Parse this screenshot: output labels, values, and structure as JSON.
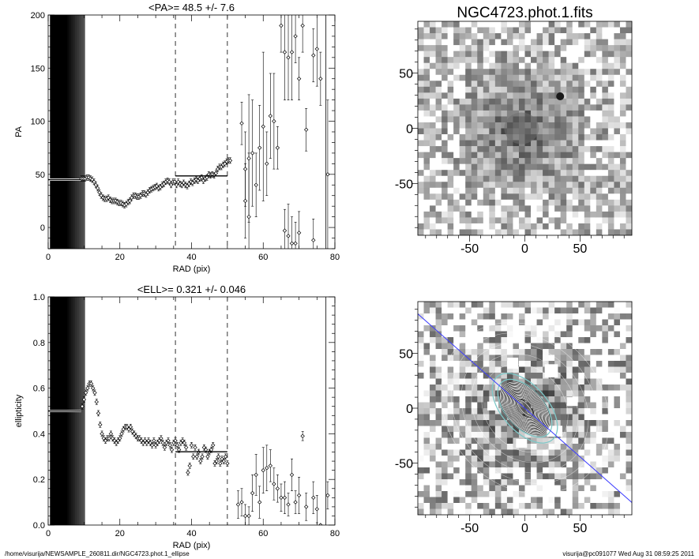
{
  "footer": {
    "path": "/home/visurija/NEWSAMPLE_260811.dir/NGC4723.phot.1_ellipse",
    "stamp": "visurija@pc091077  Wed Aug 31 08:59:25 2011"
  },
  "image_panels": {
    "title": "NGC4723.phot.1.fits",
    "xticks": [
      -50,
      0,
      50
    ],
    "yticks": [
      -50,
      0,
      50
    ],
    "range": [
      -97,
      97
    ],
    "top": {
      "blob_center": [
        -3,
        0
      ],
      "star_position": [
        32,
        29
      ],
      "colors": {
        "dark": "#1a1a1a",
        "light": "#ffffff"
      }
    },
    "bottom": {
      "pa_line_deg": 48.5,
      "ellipse_color": "#ffffff",
      "cyan_color": "#7ec8c8",
      "pa_line_color": "#3c3cff"
    }
  },
  "chart_data": [
    {
      "type": "scatter",
      "title": "<PA>=  48.5 +/-   7.6",
      "xlabel": "RAD (pix)",
      "ylabel": "PA",
      "xlim": [
        0,
        80
      ],
      "ylim": [
        -20,
        200
      ],
      "xticks": [
        0,
        20,
        40,
        60,
        80
      ],
      "yticks": [
        0,
        50,
        100,
        150,
        200
      ],
      "dashed_lines_x": [
        35.5,
        50
      ],
      "mean_line": {
        "x": [
          35.5,
          50
        ],
        "y": 48.5
      },
      "points": [
        [
          9.3,
          46
        ],
        [
          9.8,
          46
        ],
        [
          10.3,
          46
        ],
        [
          10.8,
          47
        ],
        [
          11.3,
          47
        ],
        [
          11.8,
          46
        ],
        [
          12.3,
          45
        ],
        [
          12.8,
          43
        ],
        [
          13.3,
          40
        ],
        [
          13.8,
          37
        ],
        [
          14.3,
          33
        ],
        [
          14.8,
          30
        ],
        [
          15.3,
          28
        ],
        [
          15.8,
          27
        ],
        [
          16.3,
          27
        ],
        [
          16.8,
          28
        ],
        [
          17.3,
          26
        ],
        [
          17.8,
          25
        ],
        [
          18.3,
          25
        ],
        [
          18.8,
          25
        ],
        [
          19.3,
          24
        ],
        [
          19.8,
          23
        ],
        [
          20.3,
          23
        ],
        [
          20.8,
          22
        ],
        [
          21.3,
          21
        ],
        [
          21.8,
          22
        ],
        [
          22.3,
          24
        ],
        [
          22.8,
          25
        ],
        [
          23.3,
          28
        ],
        [
          23.8,
          30
        ],
        [
          24.3,
          30
        ],
        [
          24.8,
          29
        ],
        [
          25.3,
          29
        ],
        [
          25.8,
          30
        ],
        [
          26.3,
          32
        ],
        [
          26.8,
          32
        ],
        [
          27.3,
          31
        ],
        [
          27.8,
          33
        ],
        [
          28.3,
          35
        ],
        [
          28.8,
          36
        ],
        [
          29.3,
          37
        ],
        [
          29.8,
          38
        ],
        [
          30.3,
          39
        ],
        [
          30.8,
          37
        ],
        [
          31.3,
          38
        ],
        [
          31.8,
          40
        ],
        [
          32.3,
          41
        ],
        [
          32.8,
          43
        ],
        [
          33.3,
          44
        ],
        [
          33.8,
          43
        ],
        [
          34.3,
          40
        ],
        [
          34.8,
          43
        ],
        [
          35.3,
          43
        ],
        [
          35.8,
          40
        ],
        [
          36.3,
          43
        ],
        [
          36.8,
          41
        ],
        [
          37.3,
          40
        ],
        [
          37.8,
          42
        ],
        [
          38.3,
          40
        ],
        [
          38.8,
          39
        ],
        [
          39.3,
          41
        ],
        [
          39.8,
          43
        ],
        [
          40.3,
          42
        ],
        [
          40.8,
          44
        ],
        [
          41.3,
          45
        ],
        [
          41.8,
          44
        ],
        [
          42.3,
          46
        ],
        [
          42.8,
          47
        ],
        [
          43.3,
          44
        ],
        [
          43.8,
          46
        ],
        [
          44.3,
          47
        ],
        [
          44.8,
          50
        ],
        [
          45.3,
          49
        ],
        [
          45.8,
          50
        ],
        [
          46.3,
          49
        ],
        [
          46.8,
          51
        ],
        [
          47.3,
          55
        ],
        [
          47.8,
          57
        ],
        [
          48.3,
          57
        ],
        [
          48.8,
          59
        ],
        [
          49.3,
          60
        ],
        [
          49.8,
          62
        ],
        [
          50.3,
          63
        ],
        [
          50.8,
          63
        ],
        [
          54,
          98
        ],
        [
          55,
          55
        ],
        [
          56,
          65
        ],
        [
          57,
          70
        ],
        [
          58,
          40
        ],
        [
          59,
          75
        ],
        [
          60,
          95
        ],
        [
          61,
          60
        ],
        [
          62,
          105
        ],
        [
          63,
          100
        ],
        [
          64,
          75
        ],
        [
          65,
          190
        ],
        [
          66,
          165
        ],
        [
          67,
          160
        ],
        [
          68,
          165
        ],
        [
          69,
          180
        ],
        [
          70,
          140
        ],
        [
          71,
          190
        ],
        [
          72,
          92
        ],
        [
          74,
          162
        ],
        [
          75,
          168
        ],
        [
          76,
          140
        ],
        [
          78,
          50
        ],
        [
          55,
          25
        ],
        [
          56,
          10
        ],
        [
          66,
          -3
        ],
        [
          67,
          -8
        ],
        [
          68,
          -15
        ],
        [
          69,
          -15
        ],
        [
          70,
          -5
        ],
        [
          74,
          -12
        ]
      ],
      "errors": [
        [
          54,
          98,
          20
        ],
        [
          55,
          55,
          35
        ],
        [
          56,
          65,
          60
        ],
        [
          57,
          70,
          50
        ],
        [
          58,
          40,
          30
        ],
        [
          59,
          75,
          40
        ],
        [
          60,
          95,
          70
        ],
        [
          61,
          60,
          30
        ],
        [
          62,
          105,
          40
        ],
        [
          63,
          100,
          45
        ],
        [
          64,
          75,
          20
        ],
        [
          65,
          190,
          25
        ],
        [
          66,
          165,
          45
        ],
        [
          67,
          160,
          40
        ],
        [
          68,
          165,
          45
        ],
        [
          69,
          180,
          25
        ],
        [
          70,
          140,
          20
        ],
        [
          71,
          190,
          25
        ],
        [
          72,
          92,
          20
        ],
        [
          74,
          162,
          25
        ],
        [
          75,
          168,
          35
        ],
        [
          76,
          140,
          25
        ],
        [
          78,
          50,
          70
        ],
        [
          55,
          25,
          35
        ],
        [
          56,
          10,
          60
        ],
        [
          66,
          -3,
          20
        ],
        [
          67,
          -8,
          30
        ],
        [
          68,
          -15,
          25
        ],
        [
          69,
          -15,
          20
        ],
        [
          70,
          -5,
          20
        ],
        [
          74,
          -12,
          20
        ]
      ],
      "inner_flat": {
        "x": [
          0,
          9.2
        ],
        "y": 45
      }
    },
    {
      "type": "scatter",
      "title": "<ELL>= 0.321 +/-  0.046",
      "xlabel": "RAD (pix)",
      "ylabel": "ellipticity",
      "xlim": [
        0,
        80
      ],
      "ylim": [
        0,
        1
      ],
      "xticks": [
        0,
        20,
        40,
        60,
        80
      ],
      "yticks": [
        0.0,
        0.2,
        0.4,
        0.6,
        0.8,
        1.0
      ],
      "dashed_lines_x": [
        35.5,
        50
      ],
      "mean_line": {
        "x": [
          35.5,
          50
        ],
        "y": 0.321
      },
      "points": [
        [
          9.5,
          0.52
        ],
        [
          10,
          0.55
        ],
        [
          10.5,
          0.58
        ],
        [
          11,
          0.6
        ],
        [
          11.5,
          0.62
        ],
        [
          12,
          0.62
        ],
        [
          12.5,
          0.6
        ],
        [
          13,
          0.58
        ],
        [
          13.5,
          0.54
        ],
        [
          14,
          0.49
        ],
        [
          14.5,
          0.44
        ],
        [
          15,
          0.4
        ],
        [
          15.5,
          0.38
        ],
        [
          16,
          0.37
        ],
        [
          16.5,
          0.38
        ],
        [
          17,
          0.38
        ],
        [
          17.5,
          0.4
        ],
        [
          18,
          0.38
        ],
        [
          18.5,
          0.37
        ],
        [
          19,
          0.36
        ],
        [
          19.5,
          0.37
        ],
        [
          20,
          0.38
        ],
        [
          20.5,
          0.4
        ],
        [
          21,
          0.42
        ],
        [
          21.5,
          0.43
        ],
        [
          22,
          0.43
        ],
        [
          22.5,
          0.42
        ],
        [
          23,
          0.43
        ],
        [
          23.5,
          0.41
        ],
        [
          24,
          0.4
        ],
        [
          24.5,
          0.39
        ],
        [
          25,
          0.38
        ],
        [
          25.5,
          0.38
        ],
        [
          26,
          0.37
        ],
        [
          26.5,
          0.36
        ],
        [
          27,
          0.37
        ],
        [
          27.5,
          0.36
        ],
        [
          28,
          0.37
        ],
        [
          28.5,
          0.36
        ],
        [
          29,
          0.35
        ],
        [
          29.5,
          0.37
        ],
        [
          30,
          0.35
        ],
        [
          30.5,
          0.36
        ],
        [
          31,
          0.37
        ],
        [
          31.5,
          0.38
        ],
        [
          32,
          0.36
        ],
        [
          32.5,
          0.34
        ],
        [
          33,
          0.36
        ],
        [
          33.5,
          0.37
        ],
        [
          34,
          0.35
        ],
        [
          34.5,
          0.33
        ],
        [
          35,
          0.36
        ],
        [
          35.5,
          0.37
        ],
        [
          36,
          0.35
        ],
        [
          36.5,
          0.33
        ],
        [
          37,
          0.36
        ],
        [
          37.5,
          0.37
        ],
        [
          38,
          0.36
        ],
        [
          38.5,
          0.34
        ],
        [
          39,
          0.23
        ],
        [
          39.5,
          0.26
        ],
        [
          40,
          0.35
        ],
        [
          40.5,
          0.3
        ],
        [
          41,
          0.34
        ],
        [
          41.5,
          0.3
        ],
        [
          42,
          0.32
        ],
        [
          42.5,
          0.28
        ],
        [
          43,
          0.3
        ],
        [
          43.5,
          0.34
        ],
        [
          44,
          0.33
        ],
        [
          44.5,
          0.3
        ],
        [
          45,
          0.32
        ],
        [
          45.5,
          0.33
        ],
        [
          46,
          0.35
        ],
        [
          46.5,
          0.27
        ],
        [
          47,
          0.28
        ],
        [
          47.5,
          0.3
        ],
        [
          48,
          0.27
        ],
        [
          48.5,
          0.29
        ],
        [
          49,
          0.28
        ],
        [
          49.5,
          0.3
        ],
        [
          50,
          0.27
        ],
        [
          53,
          0.09
        ],
        [
          54,
          0.1
        ],
        [
          55,
          0.04
        ],
        [
          56,
          0.04
        ],
        [
          57,
          0.14
        ],
        [
          58,
          0.22
        ],
        [
          59,
          0.1
        ],
        [
          60,
          0.24
        ],
        [
          61,
          0.25
        ],
        [
          62,
          0.26
        ],
        [
          63,
          0.18
        ],
        [
          64,
          0.16
        ],
        [
          65,
          0.12
        ],
        [
          66,
          0.12
        ],
        [
          67,
          0.09
        ],
        [
          68,
          0.22
        ],
        [
          69,
          0.1
        ],
        [
          70,
          0.13
        ],
        [
          71,
          0.39
        ],
        [
          72,
          0.08
        ],
        [
          74,
          0.12
        ],
        [
          75,
          0.07
        ],
        [
          76,
          0.0
        ],
        [
          78,
          0.13
        ]
      ],
      "errors": [
        [
          53,
          0.09,
          0.06
        ],
        [
          54,
          0.1,
          0.06
        ],
        [
          55,
          0.04,
          0.05
        ],
        [
          56,
          0.04,
          0.04
        ],
        [
          57,
          0.14,
          0.08
        ],
        [
          58,
          0.22,
          0.09
        ],
        [
          59,
          0.1,
          0.07
        ],
        [
          60,
          0.24,
          0.1
        ],
        [
          61,
          0.25,
          0.1
        ],
        [
          62,
          0.26,
          0.07
        ],
        [
          63,
          0.18,
          0.07
        ],
        [
          64,
          0.16,
          0.06
        ],
        [
          65,
          0.12,
          0.06
        ],
        [
          66,
          0.12,
          0.07
        ],
        [
          67,
          0.09,
          0.05
        ],
        [
          68,
          0.22,
          0.07
        ],
        [
          69,
          0.1,
          0.05
        ],
        [
          70,
          0.13,
          0.08
        ],
        [
          71,
          0.39,
          0.02
        ],
        [
          72,
          0.08,
          0.06
        ],
        [
          74,
          0.12,
          0.07
        ],
        [
          75,
          0.07,
          0.06
        ],
        [
          76,
          0.0,
          0.0
        ],
        [
          78,
          0.13,
          0.06
        ]
      ],
      "inner_flat": {
        "x": [
          0,
          9.2
        ],
        "y": 0.5
      }
    }
  ]
}
